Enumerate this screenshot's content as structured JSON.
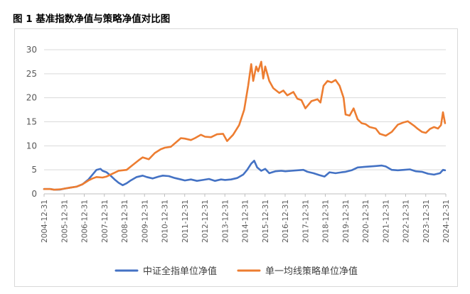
{
  "figure": {
    "caption": "图 1 基准指数净值与策略净值对比图"
  },
  "chart_data": {
    "type": "line",
    "title": "",
    "xlabel": "",
    "ylabel": "",
    "ylim": [
      0,
      30
    ],
    "yticks": [
      "0",
      "5",
      "10",
      "15",
      "20",
      "25",
      "30"
    ],
    "xticks": [
      "2004-12-31",
      "2005-12-31",
      "2006-12-31",
      "2007-12-31",
      "2008-12-31",
      "2009-12-31",
      "2010-12-31",
      "2011-12-31",
      "2012-12-31",
      "2013-12-31",
      "2014-12-31",
      "2015-12-31",
      "2016-12-31",
      "2017-12-31",
      "2018-12-31",
      "2019-12-31",
      "2020-12-31",
      "2021-12-31",
      "2022-12-31",
      "2023-12-31",
      "2024-12-31"
    ],
    "grid": "horizontal",
    "legend_position": "bottom",
    "series": [
      {
        "name": "中证全指单位净值",
        "color": "#4472C4",
        "points": [
          [
            2004.99,
            1.0
          ],
          [
            2005.3,
            1.0
          ],
          [
            2005.5,
            0.85
          ],
          [
            2005.8,
            0.9
          ],
          [
            2006.0,
            1.1
          ],
          [
            2006.3,
            1.3
          ],
          [
            2006.6,
            1.5
          ],
          [
            2006.9,
            2.0
          ],
          [
            2007.2,
            3.0
          ],
          [
            2007.4,
            4.0
          ],
          [
            2007.6,
            5.0
          ],
          [
            2007.8,
            5.2
          ],
          [
            2007.9,
            4.8
          ],
          [
            2008.1,
            4.5
          ],
          [
            2008.3,
            3.8
          ],
          [
            2008.5,
            3.0
          ],
          [
            2008.7,
            2.3
          ],
          [
            2008.9,
            1.8
          ],
          [
            2009.1,
            2.2
          ],
          [
            2009.3,
            2.8
          ],
          [
            2009.6,
            3.5
          ],
          [
            2009.9,
            3.8
          ],
          [
            2010.1,
            3.5
          ],
          [
            2010.4,
            3.2
          ],
          [
            2010.7,
            3.6
          ],
          [
            2010.9,
            3.8
          ],
          [
            2011.2,
            3.7
          ],
          [
            2011.5,
            3.3
          ],
          [
            2011.8,
            3.0
          ],
          [
            2012.0,
            2.8
          ],
          [
            2012.3,
            3.0
          ],
          [
            2012.6,
            2.7
          ],
          [
            2012.9,
            2.9
          ],
          [
            2013.2,
            3.1
          ],
          [
            2013.5,
            2.7
          ],
          [
            2013.8,
            3.0
          ],
          [
            2014.0,
            2.9
          ],
          [
            2014.3,
            3.0
          ],
          [
            2014.6,
            3.3
          ],
          [
            2014.9,
            4.0
          ],
          [
            2015.1,
            5.0
          ],
          [
            2015.3,
            6.3
          ],
          [
            2015.45,
            6.9
          ],
          [
            2015.6,
            5.5
          ],
          [
            2015.8,
            4.8
          ],
          [
            2016.0,
            5.2
          ],
          [
            2016.2,
            4.3
          ],
          [
            2016.5,
            4.7
          ],
          [
            2016.8,
            4.8
          ],
          [
            2017.0,
            4.7
          ],
          [
            2017.3,
            4.8
          ],
          [
            2017.6,
            4.9
          ],
          [
            2017.9,
            5.0
          ],
          [
            2018.1,
            4.6
          ],
          [
            2018.4,
            4.3
          ],
          [
            2018.7,
            3.9
          ],
          [
            2018.95,
            3.6
          ],
          [
            2019.2,
            4.5
          ],
          [
            2019.5,
            4.3
          ],
          [
            2019.8,
            4.5
          ],
          [
            2020.0,
            4.6
          ],
          [
            2020.3,
            4.9
          ],
          [
            2020.6,
            5.5
          ],
          [
            2020.9,
            5.6
          ],
          [
            2021.2,
            5.7
          ],
          [
            2021.5,
            5.8
          ],
          [
            2021.8,
            5.9
          ],
          [
            2022.0,
            5.7
          ],
          [
            2022.3,
            5.0
          ],
          [
            2022.6,
            4.9
          ],
          [
            2022.9,
            5.0
          ],
          [
            2023.2,
            5.1
          ],
          [
            2023.5,
            4.7
          ],
          [
            2023.8,
            4.6
          ],
          [
            2024.1,
            4.2
          ],
          [
            2024.4,
            4.0
          ],
          [
            2024.7,
            4.3
          ],
          [
            2024.85,
            5.0
          ],
          [
            2024.95,
            4.9
          ]
        ]
      },
      {
        "name": "单一均线策略单位净值",
        "color": "#ED7D31",
        "points": [
          [
            2004.99,
            1.0
          ],
          [
            2005.3,
            1.0
          ],
          [
            2005.5,
            0.85
          ],
          [
            2005.8,
            0.95
          ],
          [
            2006.0,
            1.1
          ],
          [
            2006.3,
            1.3
          ],
          [
            2006.6,
            1.5
          ],
          [
            2006.9,
            2.0
          ],
          [
            2007.2,
            2.8
          ],
          [
            2007.4,
            3.2
          ],
          [
            2007.6,
            3.5
          ],
          [
            2007.9,
            3.4
          ],
          [
            2008.1,
            3.6
          ],
          [
            2008.4,
            4.2
          ],
          [
            2008.7,
            4.8
          ],
          [
            2008.9,
            4.9
          ],
          [
            2009.1,
            5.0
          ],
          [
            2009.4,
            6.0
          ],
          [
            2009.7,
            7.0
          ],
          [
            2009.9,
            7.6
          ],
          [
            2010.2,
            7.2
          ],
          [
            2010.5,
            8.5
          ],
          [
            2010.8,
            9.3
          ],
          [
            2011.0,
            9.6
          ],
          [
            2011.3,
            9.8
          ],
          [
            2011.5,
            10.5
          ],
          [
            2011.8,
            11.6
          ],
          [
            2012.0,
            11.5
          ],
          [
            2012.3,
            11.2
          ],
          [
            2012.5,
            11.6
          ],
          [
            2012.8,
            12.3
          ],
          [
            2013.0,
            11.9
          ],
          [
            2013.3,
            11.8
          ],
          [
            2013.6,
            12.4
          ],
          [
            2013.9,
            12.5
          ],
          [
            2014.1,
            11.0
          ],
          [
            2014.4,
            12.3
          ],
          [
            2014.7,
            14.3
          ],
          [
            2014.95,
            17.5
          ],
          [
            2015.15,
            22.5
          ],
          [
            2015.3,
            27.0
          ],
          [
            2015.4,
            23.5
          ],
          [
            2015.55,
            26.5
          ],
          [
            2015.65,
            25.5
          ],
          [
            2015.8,
            27.5
          ],
          [
            2015.9,
            24.0
          ],
          [
            2016.0,
            26.5
          ],
          [
            2016.2,
            23.5
          ],
          [
            2016.4,
            22.0
          ],
          [
            2016.7,
            21.0
          ],
          [
            2016.9,
            21.5
          ],
          [
            2017.1,
            20.5
          ],
          [
            2017.4,
            21.2
          ],
          [
            2017.6,
            19.8
          ],
          [
            2017.8,
            19.5
          ],
          [
            2018.0,
            17.8
          ],
          [
            2018.3,
            19.3
          ],
          [
            2018.6,
            19.7
          ],
          [
            2018.75,
            19.0
          ],
          [
            2018.9,
            22.5
          ],
          [
            2019.1,
            23.5
          ],
          [
            2019.3,
            23.2
          ],
          [
            2019.5,
            23.7
          ],
          [
            2019.7,
            22.5
          ],
          [
            2019.9,
            20.0
          ],
          [
            2020.0,
            16.5
          ],
          [
            2020.2,
            16.3
          ],
          [
            2020.4,
            17.8
          ],
          [
            2020.6,
            15.5
          ],
          [
            2020.8,
            14.7
          ],
          [
            2021.0,
            14.5
          ],
          [
            2021.2,
            13.9
          ],
          [
            2021.5,
            13.6
          ],
          [
            2021.7,
            12.5
          ],
          [
            2022.0,
            12.1
          ],
          [
            2022.3,
            12.9
          ],
          [
            2022.6,
            14.4
          ],
          [
            2022.9,
            14.9
          ],
          [
            2023.1,
            15.1
          ],
          [
            2023.4,
            14.2
          ],
          [
            2023.6,
            13.5
          ],
          [
            2023.8,
            12.9
          ],
          [
            2024.0,
            12.7
          ],
          [
            2024.2,
            13.5
          ],
          [
            2024.4,
            13.9
          ],
          [
            2024.6,
            13.6
          ],
          [
            2024.75,
            14.3
          ],
          [
            2024.85,
            17.0
          ],
          [
            2024.95,
            14.7
          ]
        ]
      }
    ]
  }
}
